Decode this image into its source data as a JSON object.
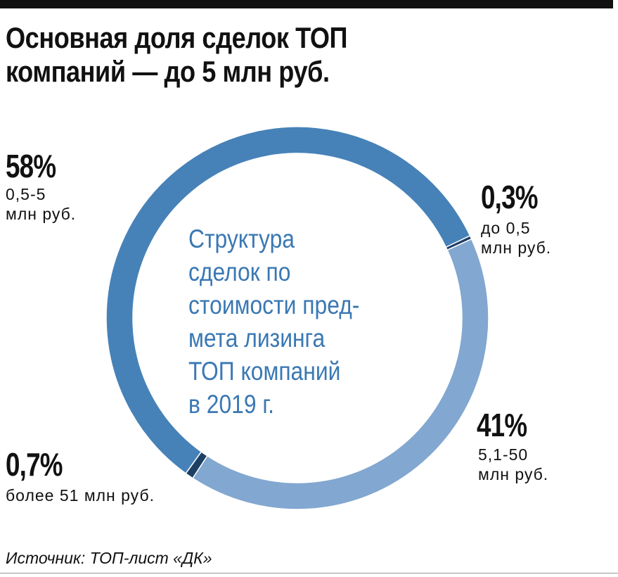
{
  "header": {
    "title_lines": [
      "Основная доля сделок ТОП",
      "компаний — до 5 млн руб."
    ]
  },
  "chart_data": {
    "type": "pie",
    "subtype": "donut",
    "title": "Основная доля сделок ТОП компаний — до 5 млн руб.",
    "center_label_lines": [
      "Структура",
      "сделок по",
      "стоимости пред-",
      "мета лизинга",
      "ТОП компаний",
      "в 2019 г."
    ],
    "slices": [
      {
        "id": "s1",
        "value": 0.3,
        "label": "0,3%",
        "category_lines": [
          "до 0,5",
          "млн руб."
        ],
        "color": "#1d3f63"
      },
      {
        "id": "s2",
        "value": 41,
        "label": "41%",
        "category_lines": [
          "5,1-50",
          "млн руб."
        ],
        "color": "#82a7d0"
      },
      {
        "id": "s3",
        "value": 0.7,
        "label": "0,7%",
        "category_lines": [
          "более 51 млн руб."
        ],
        "color": "#1d3f63"
      },
      {
        "id": "s4",
        "value": 58,
        "label": "58%",
        "category_lines": [
          "0,5-5",
          "млн руб."
        ],
        "color": "#4682b8"
      }
    ]
  },
  "footer": {
    "source": "Источник: ТОП-лист «ДК»"
  }
}
